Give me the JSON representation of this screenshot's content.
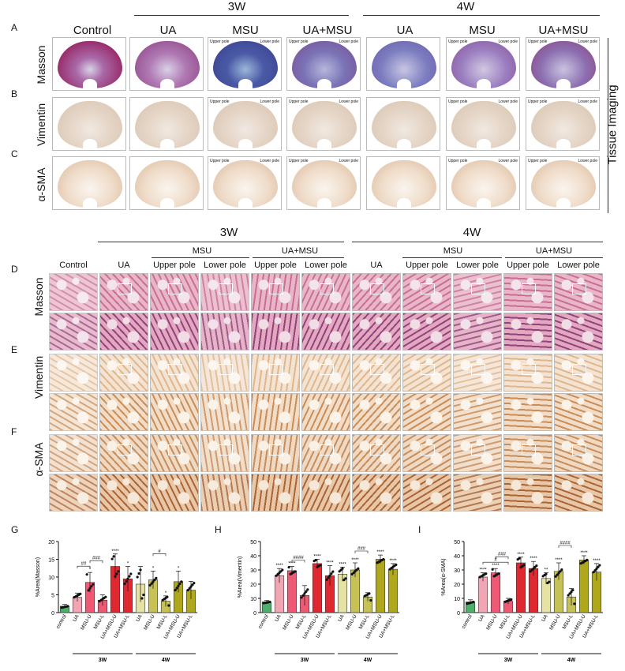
{
  "panel_letters": {
    "A": "A",
    "B": "B",
    "C": "C",
    "D": "D",
    "E": "E",
    "F": "F",
    "G": "G",
    "H": "H",
    "I": "I"
  },
  "top": {
    "groups": [
      "3W",
      "4W"
    ],
    "columns": [
      "Control",
      "UA",
      "MSU",
      "UA+MSU",
      "UA",
      "MSU",
      "UA+MSU"
    ],
    "rows": [
      "Masson",
      "Vimentin",
      "α-SMA"
    ],
    "pole_upper": "Upper pole",
    "pole_lower": "Lower pole",
    "side_label": "Tissue Imaging"
  },
  "mid": {
    "groups": [
      "3W",
      "4W"
    ],
    "headers": [
      "MSU",
      "UA+MSU",
      "MSU",
      "UA+MSU"
    ],
    "columns": [
      "Control",
      "UA",
      "Upper pole",
      "Lower pole",
      "Upper pole",
      "Lower pole",
      "UA",
      "Upper pole",
      "Lower pole",
      "Upper pole",
      "Lower pole"
    ],
    "rows": [
      "Masson",
      "Vimentin",
      "α-SMA"
    ]
  },
  "colors": {
    "control": "#4caf6a",
    "ua3": "#f2a6b4",
    "msu3": "#ee5a74",
    "uamsu3": "#e02830",
    "ua4": "#e6e2a4",
    "msu4": "#c6c256",
    "uamsu4": "#b0a81c"
  },
  "chart_data": [
    {
      "type": "bar",
      "ylabel": "%Area(Masson)",
      "ylim": [
        0,
        20
      ],
      "yticks": [
        "0",
        "5",
        "10",
        "15",
        "20"
      ],
      "categories": [
        "control",
        "UA",
        "MSU-U",
        "MSU-L",
        "UA+MSU-U",
        "UA+MSU-L",
        "UA",
        "MSU-U",
        "MSU-L",
        "UA+MSU-U",
        "UA+MSU-L"
      ],
      "values": [
        1.8,
        4.3,
        8.5,
        3.5,
        13,
        9.5,
        8,
        9.2,
        3.2,
        8.7,
        6.3
      ],
      "errors": [
        0.5,
        1.2,
        2.8,
        1.5,
        3.5,
        3.5,
        5,
        2.5,
        1.5,
        3,
        2.5
      ],
      "sig": [
        "",
        "",
        "*",
        "",
        "****",
        "*",
        "",
        "*",
        "*",
        "*",
        ""
      ],
      "brackets": [
        {
          "from": 1,
          "to": 2,
          "label": "##"
        },
        {
          "from": 2,
          "to": 3,
          "label": "###"
        },
        {
          "from": 7,
          "to": 8,
          "label": "#"
        }
      ],
      "group_labels": [
        "3W",
        "4W"
      ]
    },
    {
      "type": "bar",
      "ylabel": "%Area(Vimentin)",
      "ylim": [
        0,
        50
      ],
      "yticks": [
        "0",
        "10",
        "20",
        "30",
        "40",
        "50"
      ],
      "categories": [
        "control",
        "UA",
        "MSU-U",
        "MSU-L",
        "UA+MSU-U",
        "UA+MSU-L",
        "UA",
        "MSU-U",
        "MSU-L",
        "UA+MSU-U",
        "UA+MSU-L"
      ],
      "values": [
        7.5,
        26,
        29.5,
        12,
        34.5,
        26,
        27,
        30,
        11,
        37.5,
        30.5
      ],
      "errors": [
        1,
        5,
        3,
        7,
        3,
        7,
        5,
        5,
        3,
        3,
        4
      ],
      "sig": [
        "",
        "****",
        "****",
        "",
        "****",
        "****",
        "****",
        "****",
        "",
        "****",
        "****"
      ],
      "brackets": [
        {
          "from": 2,
          "to": 3,
          "label": "####"
        },
        {
          "from": 7,
          "to": 8,
          "label": "###"
        }
      ],
      "group_labels": [
        "3W",
        "4W"
      ]
    },
    {
      "type": "bar",
      "ylabel": "%Area(α-SMA)",
      "ylim": [
        0,
        50
      ],
      "yticks": [
        "0",
        "10",
        "20",
        "30",
        "40",
        "50"
      ],
      "categories": [
        "control",
        "UA",
        "MSU-U",
        "MSU-L",
        "UA+MSU-U",
        "UA+MSU-L",
        "UA",
        "MSU-U",
        "MSU-L",
        "UA+MSU-U",
        "UA+MSU-L"
      ],
      "values": [
        7.5,
        25,
        28,
        8,
        35,
        31,
        24,
        29,
        11,
        37,
        28.5
      ],
      "errors": [
        1.5,
        3,
        3,
        2,
        4,
        5,
        4,
        6,
        6,
        3,
        6
      ],
      "sig": [
        "",
        "****",
        "****",
        "",
        "****",
        "****",
        "**",
        "****",
        "",
        "****",
        "****"
      ],
      "brackets": [
        {
          "from": 1,
          "to": 3,
          "label": "#"
        },
        {
          "from": 2,
          "to": 3,
          "label": "###"
        },
        {
          "from": 7,
          "to": 8,
          "label": "####"
        }
      ],
      "group_labels": [
        "3W",
        "4W"
      ]
    }
  ]
}
